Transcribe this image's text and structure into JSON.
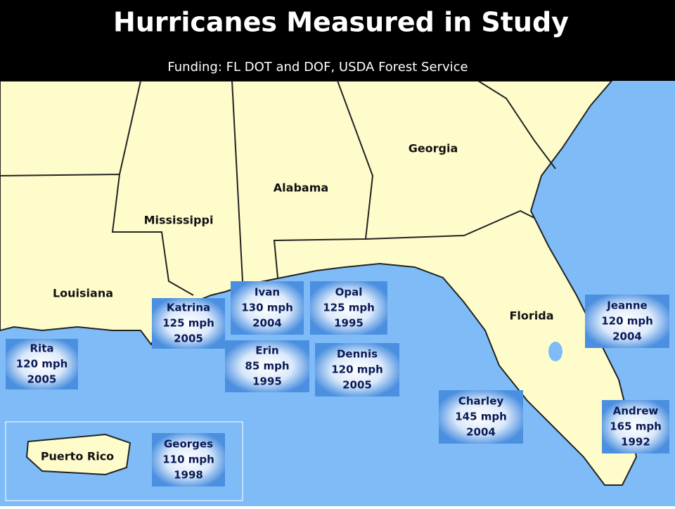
{
  "header": {
    "title": "Hurricanes Measured in Study",
    "subtitle": "Funding: FL DOT and DOF, USDA Forest Service"
  },
  "states": [
    "Georgia",
    "Alabama",
    "Mississippi",
    "Louisiana",
    "Florida"
  ],
  "inset": {
    "label": "Puerto Rico"
  },
  "hurricanes": [
    {
      "name": "Rita",
      "speed": "120 mph",
      "year": "2005"
    },
    {
      "name": "Katrina",
      "speed": "125 mph",
      "year": "2005"
    },
    {
      "name": "Ivan",
      "speed": "130 mph",
      "year": "2004"
    },
    {
      "name": "Opal",
      "speed": "125 mph",
      "year": "1995"
    },
    {
      "name": "Erin",
      "speed": "85 mph",
      "year": "1995"
    },
    {
      "name": "Dennis",
      "speed": "120 mph",
      "year": "2005"
    },
    {
      "name": "Charley",
      "speed": "145 mph",
      "year": "2004"
    },
    {
      "name": "Jeanne",
      "speed": "120 mph",
      "year": "2004"
    },
    {
      "name": "Andrew",
      "speed": "165 mph",
      "year": "1992"
    },
    {
      "name": "Georges",
      "speed": "110 mph",
      "year": "1998"
    }
  ]
}
